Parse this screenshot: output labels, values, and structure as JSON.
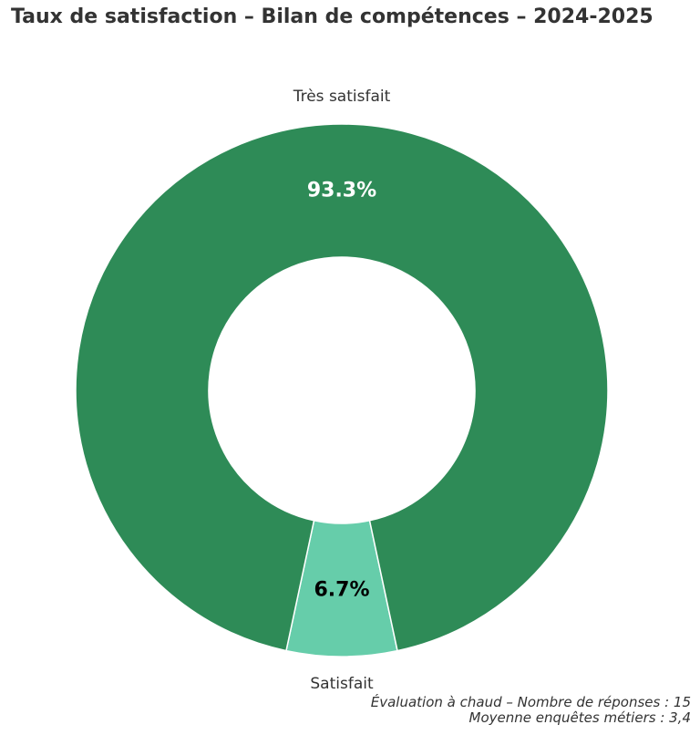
{
  "chart_data": {
    "type": "pie",
    "title": "Taux de satisfaction – Bilan de compétences – 2024-2025",
    "donut": true,
    "start": "bottom",
    "direction": "clockwise",
    "slices": [
      {
        "label": "Satisfait",
        "value": 6.7,
        "pct_label": "6.7%",
        "color": "#66cdaa",
        "pct_text_color": "#000000"
      },
      {
        "label": "Très satisfait",
        "value": 93.3,
        "pct_label": "93.3%",
        "color": "#2e8b57",
        "pct_text_color": "#ffffff"
      }
    ]
  },
  "footnote": {
    "line1": "Évaluation à chaud – Nombre de réponses : 15",
    "line2": "Moyenne enquêtes métiers : 3,4"
  }
}
